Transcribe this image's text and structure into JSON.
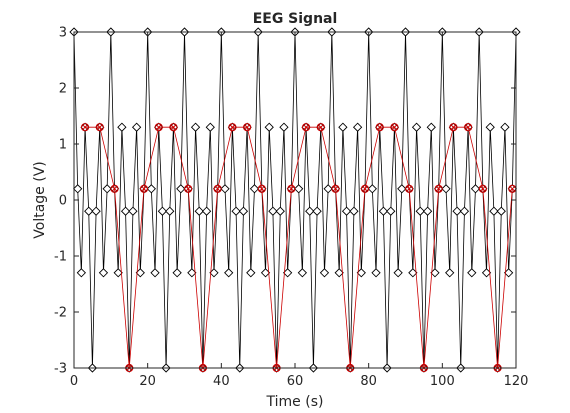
{
  "chart_data": {
    "type": "line",
    "title": "EEG Signal",
    "xlabel": "Time (s)",
    "ylabel": "Voltage (V)",
    "xlim": [
      0,
      120
    ],
    "ylim": [
      -3,
      3
    ],
    "xticks": [
      "0",
      "20",
      "40",
      "60",
      "80",
      "100",
      "120"
    ],
    "yticks": [
      "-3",
      "-2",
      "-1",
      "0",
      "1",
      "2",
      "3"
    ],
    "grid": false,
    "legend": "none",
    "series": [
      {
        "marker": "diamond",
        "color": "#000000",
        "x": [
          0,
          1,
          2,
          3,
          4,
          5,
          6,
          7,
          8,
          9,
          10,
          11,
          12,
          13,
          14,
          15,
          16,
          17,
          18,
          19,
          20,
          21,
          22,
          23,
          24,
          25,
          26,
          27,
          28,
          29,
          30,
          31,
          32,
          33,
          34,
          35,
          36,
          37,
          38,
          39,
          40,
          41,
          42,
          43,
          44,
          45,
          46,
          47,
          48,
          49,
          50,
          51,
          52,
          53,
          54,
          55,
          56,
          57,
          58,
          59,
          60,
          61,
          62,
          63,
          64,
          65,
          66,
          67,
          68,
          69,
          70,
          71,
          72,
          73,
          74,
          75,
          76,
          77,
          78,
          79,
          80,
          81,
          82,
          83,
          84,
          85,
          86,
          87,
          88,
          89,
          90,
          91,
          92,
          93,
          94,
          95,
          96,
          97,
          98,
          99,
          100,
          101,
          102,
          103,
          104,
          105,
          106,
          107,
          108,
          109,
          110,
          111,
          112,
          113,
          114,
          115,
          116,
          117,
          118,
          119,
          120
        ],
        "y": [
          3,
          0.2,
          -1.3,
          1.3,
          -0.2,
          -3,
          -0.2,
          1.3,
          -1.3,
          0.2,
          3,
          0.2,
          -1.3,
          1.3,
          -0.2,
          -3,
          -0.2,
          1.3,
          -1.3,
          0.2,
          3,
          0.2,
          -1.3,
          1.3,
          -0.2,
          -3,
          -0.2,
          1.3,
          -1.3,
          0.2,
          3,
          0.2,
          -1.3,
          1.3,
          -0.2,
          -3,
          -0.2,
          1.3,
          -1.3,
          0.2,
          3,
          0.2,
          -1.3,
          1.3,
          -0.2,
          -3,
          -0.2,
          1.3,
          -1.3,
          0.2,
          3,
          0.2,
          -1.3,
          1.3,
          -0.2,
          -3,
          -0.2,
          1.3,
          -1.3,
          0.2,
          3,
          0.2,
          -1.3,
          1.3,
          -0.2,
          -3,
          -0.2,
          1.3,
          -1.3,
          0.2,
          3,
          0.2,
          -1.3,
          1.3,
          -0.2,
          -3,
          -0.2,
          1.3,
          -1.3,
          0.2,
          3,
          0.2,
          -1.3,
          1.3,
          -0.2,
          -3,
          -0.2,
          1.3,
          -1.3,
          0.2,
          3,
          0.2,
          -1.3,
          1.3,
          -0.2,
          -3,
          -0.2,
          1.3,
          -1.3,
          0.2,
          3,
          0.2,
          -1.3,
          1.3,
          -0.2,
          -3,
          -0.2,
          1.3,
          -1.3,
          0.2,
          3,
          0.2,
          -1.3,
          1.3,
          -0.2,
          -3,
          -0.2,
          1.3,
          -1.3,
          0.2,
          3
        ]
      },
      {
        "marker": "circle-x",
        "color": "#cc0000",
        "x": [
          3,
          7,
          11,
          15,
          19,
          23,
          27,
          31,
          35,
          39,
          43,
          47,
          51,
          55,
          59,
          63,
          67,
          71,
          75,
          79,
          83,
          87,
          91,
          95,
          99,
          103,
          107,
          111,
          115,
          119
        ],
        "y": [
          1.3,
          1.3,
          0.2,
          -3,
          0.2,
          1.3,
          1.3,
          0.2,
          -3,
          0.2,
          1.3,
          1.3,
          0.2,
          -3,
          0.2,
          1.3,
          1.3,
          0.2,
          -3,
          0.2,
          1.3,
          1.3,
          0.2,
          -3,
          0.2,
          1.3,
          1.3,
          0.2,
          -3,
          0.2
        ]
      }
    ]
  }
}
